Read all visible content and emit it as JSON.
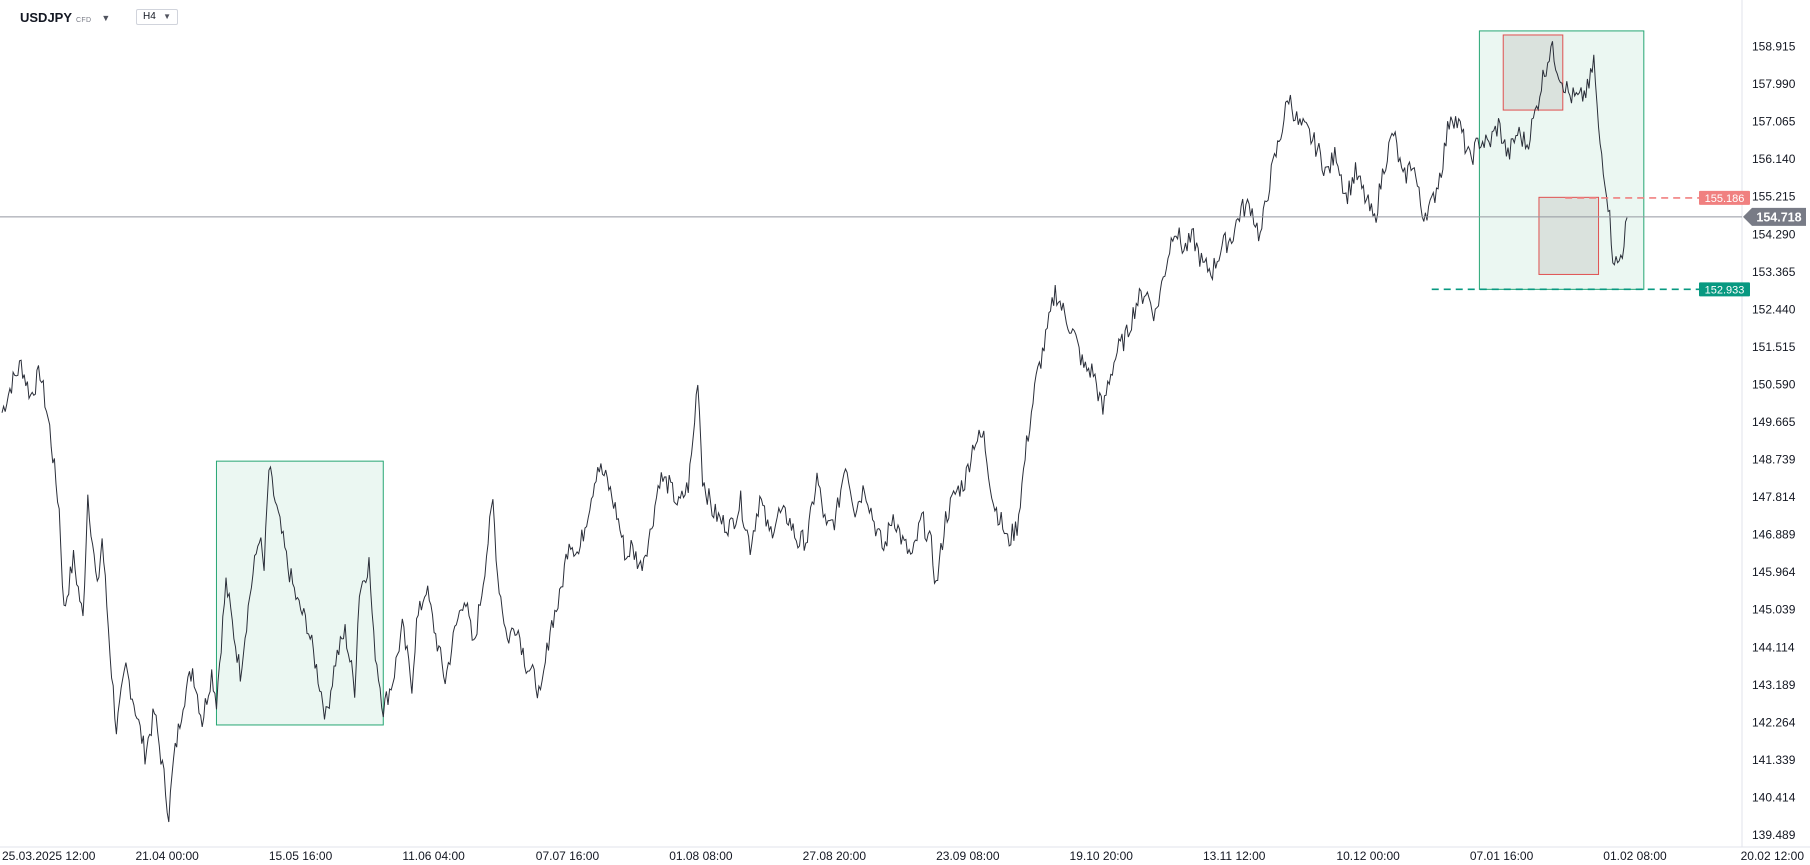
{
  "header": {
    "symbol": "USDJPY",
    "symbol_tag": "CFD",
    "symbol_caret_icon": "chevron-down-icon",
    "timeframe": "H4",
    "timeframe_caret_icon": "chevron-down-icon"
  },
  "chart_data": {
    "type": "line",
    "series": [
      {
        "instrument": "USDJPY",
        "color": "#2a2e39",
        "points": [
          [
            0,
            149.9
          ],
          [
            2,
            150.6
          ],
          [
            4,
            151.1
          ],
          [
            6,
            150.3
          ],
          [
            8,
            150.9
          ],
          [
            10,
            149.5
          ],
          [
            12,
            147.5
          ],
          [
            13,
            145.0
          ],
          [
            15,
            146.3
          ],
          [
            17,
            144.8
          ],
          [
            18,
            147.9
          ],
          [
            20,
            145.5
          ],
          [
            21,
            146.8
          ],
          [
            23,
            143.5
          ],
          [
            24,
            142.1
          ],
          [
            26,
            143.6
          ],
          [
            28,
            142.6
          ],
          [
            30,
            141.5
          ],
          [
            32,
            142.5
          ],
          [
            34,
            140.9
          ],
          [
            35,
            140.0
          ],
          [
            36,
            141.3
          ],
          [
            38,
            142.8
          ],
          [
            40,
            143.6
          ],
          [
            42,
            142.3
          ],
          [
            44,
            143.5
          ],
          [
            45,
            142.8
          ],
          [
            47,
            145.7
          ],
          [
            49,
            144.2
          ],
          [
            50,
            143.5
          ],
          [
            52,
            145.4
          ],
          [
            54,
            146.9
          ],
          [
            55,
            146.0
          ],
          [
            56,
            148.5
          ],
          [
            58,
            147.3
          ],
          [
            60,
            146.1
          ],
          [
            62,
            145.2
          ],
          [
            64,
            144.7
          ],
          [
            66,
            143.6
          ],
          [
            68,
            142.4
          ],
          [
            70,
            143.8
          ],
          [
            72,
            144.5
          ],
          [
            74,
            143.1
          ],
          [
            75,
            145.5
          ],
          [
            77,
            146.2
          ],
          [
            78,
            144.3
          ],
          [
            80,
            142.6
          ],
          [
            82,
            143.3
          ],
          [
            84,
            144.6
          ],
          [
            86,
            143.2
          ],
          [
            87,
            144.7
          ],
          [
            89,
            145.6
          ],
          [
            91,
            144.4
          ],
          [
            93,
            143.3
          ],
          [
            95,
            144.5
          ],
          [
            97,
            145.4
          ],
          [
            99,
            144.1
          ],
          [
            101,
            145.8
          ],
          [
            103,
            147.7
          ],
          [
            104,
            145.9
          ],
          [
            106,
            144.3
          ],
          [
            108,
            144.7
          ],
          [
            110,
            143.7
          ],
          [
            112,
            143.3
          ],
          [
            113,
            142.8
          ],
          [
            115,
            144.6
          ],
          [
            117,
            145.3
          ],
          [
            119,
            146.8
          ],
          [
            121,
            146.4
          ],
          [
            123,
            147.5
          ],
          [
            125,
            148.6
          ],
          [
            127,
            148.2
          ],
          [
            129,
            147.4
          ],
          [
            131,
            146.3
          ],
          [
            132,
            146.6
          ],
          [
            134,
            146.1
          ],
          [
            136,
            146.9
          ],
          [
            138,
            148.3
          ],
          [
            140,
            148.1
          ],
          [
            142,
            147.6
          ],
          [
            144,
            148.1
          ],
          [
            145,
            149.2
          ],
          [
            146,
            150.8
          ],
          [
            147,
            148.3
          ],
          [
            149,
            147.5
          ],
          [
            151,
            147.2
          ],
          [
            153,
            147.1
          ],
          [
            155,
            147.7
          ],
          [
            157,
            146.6
          ],
          [
            159,
            147.8
          ],
          [
            161,
            146.9
          ],
          [
            163,
            147.4
          ],
          [
            165,
            147.3
          ],
          [
            167,
            146.7
          ],
          [
            169,
            146.8
          ],
          [
            171,
            148.3
          ],
          [
            173,
            147.0
          ],
          [
            175,
            147.3
          ],
          [
            177,
            148.7
          ],
          [
            179,
            147.5
          ],
          [
            181,
            148.1
          ],
          [
            183,
            147.2
          ],
          [
            185,
            146.5
          ],
          [
            187,
            147.4
          ],
          [
            189,
            146.7
          ],
          [
            191,
            146.3
          ],
          [
            193,
            147.3
          ],
          [
            195,
            146.6
          ],
          [
            196,
            145.6
          ],
          [
            198,
            147.3
          ],
          [
            200,
            147.9
          ],
          [
            202,
            148.2
          ],
          [
            204,
            149.2
          ],
          [
            206,
            149.3
          ],
          [
            208,
            147.7
          ],
          [
            210,
            147.1
          ],
          [
            211,
            146.7
          ],
          [
            212,
            146.9
          ],
          [
            213,
            147.1
          ],
          [
            215,
            149.1
          ],
          [
            217,
            150.7
          ],
          [
            219,
            151.7
          ],
          [
            221,
            152.9
          ],
          [
            223,
            152.3
          ],
          [
            225,
            151.8
          ],
          [
            227,
            151.0
          ],
          [
            229,
            150.9
          ],
          [
            231,
            149.9
          ],
          [
            232,
            150.6
          ],
          [
            234,
            151.4
          ],
          [
            236,
            151.8
          ],
          [
            238,
            152.6
          ],
          [
            240,
            152.9
          ],
          [
            242,
            152.3
          ],
          [
            244,
            153.4
          ],
          [
            246,
            154.5
          ],
          [
            248,
            153.9
          ],
          [
            250,
            154.2
          ],
          [
            252,
            153.5
          ],
          [
            254,
            153.4
          ],
          [
            256,
            154.0
          ],
          [
            258,
            154.2
          ],
          [
            260,
            154.9
          ],
          [
            262,
            155.0
          ],
          [
            264,
            154.2
          ],
          [
            266,
            155.6
          ],
          [
            268,
            156.6
          ],
          [
            270,
            157.7
          ],
          [
            272,
            157.0
          ],
          [
            274,
            156.8
          ],
          [
            276,
            156.4
          ],
          [
            278,
            155.8
          ],
          [
            280,
            156.3
          ],
          [
            282,
            155.2
          ],
          [
            284,
            155.8
          ],
          [
            286,
            155.2
          ],
          [
            288,
            154.6
          ],
          [
            290,
            156.0
          ],
          [
            292,
            156.8
          ],
          [
            294,
            155.6
          ],
          [
            296,
            156.1
          ],
          [
            298,
            154.8
          ],
          [
            300,
            155.0
          ],
          [
            302,
            155.9
          ],
          [
            304,
            157.3
          ],
          [
            306,
            156.9
          ],
          [
            308,
            156.1
          ],
          [
            310,
            156.6
          ],
          [
            312,
            156.5
          ],
          [
            314,
            157.0
          ],
          [
            316,
            156.2
          ],
          [
            318,
            156.8
          ],
          [
            320,
            156.5
          ],
          [
            322,
            157.4
          ],
          [
            323,
            158.0
          ],
          [
            325,
            158.9
          ],
          [
            327,
            158.2
          ],
          [
            329,
            157.7
          ],
          [
            331,
            157.6
          ],
          [
            333,
            157.9
          ],
          [
            334,
            158.6
          ],
          [
            335,
            156.8
          ],
          [
            336,
            156.0
          ],
          [
            337,
            155.1
          ],
          [
            338,
            153.8
          ],
          [
            339,
            153.5
          ],
          [
            340,
            153.9
          ],
          [
            341,
            154.7
          ]
        ]
      }
    ],
    "xlim": [
      0,
      360
    ],
    "ylim": [
      139.489,
      159.84
    ],
    "x_tick_labels": [
      "25.03.2025  12:00",
      "21.04  00:00",
      "15.05  16:00",
      "11.06  04:00",
      "07.07  16:00",
      "01.08  08:00",
      "27.08  20:00",
      "23.09  08:00",
      "19.10  20:00",
      "13.11  12:00",
      "10.12  00:00",
      "07.01  16:00",
      "01.02  08:00",
      "20.02  12:00"
    ],
    "x_tick_positions": [
      0,
      28,
      56,
      84,
      112,
      140,
      168,
      196,
      224,
      252,
      280,
      308,
      336,
      364
    ],
    "y_tick_labels": [
      "158.915",
      "157.990",
      "157.065",
      "156.140",
      "155.215",
      "154.290",
      "153.365",
      "152.440",
      "151.515",
      "150.590",
      "149.665",
      "148.739",
      "147.814",
      "146.889",
      "145.964",
      "145.039",
      "144.114",
      "143.189",
      "142.264",
      "141.339",
      "140.414",
      "139.489"
    ],
    "grid": false,
    "current_price": {
      "value": 154.718,
      "label": "154.718",
      "color": "#787b86"
    },
    "levels": [
      {
        "value": 155.186,
        "label": "155.186",
        "color": "#f08080",
        "x_start": 328,
        "style": "dashed"
      },
      {
        "value": 152.933,
        "label": "152.933",
        "color": "#089981",
        "x_start": 300,
        "style": "dashed"
      }
    ],
    "zones": [
      {
        "x0": 45,
        "x1": 80,
        "y0": 142.2,
        "y1": 148.7,
        "fill": "rgba(38,166,116,0.09)",
        "stroke": "#26a674"
      },
      {
        "x0": 310,
        "x1": 344.5,
        "y0": 152.933,
        "y1": 159.3,
        "fill": "rgba(38,166,116,0.09)",
        "stroke": "#26a674"
      },
      {
        "x0": 315,
        "x1": 327.5,
        "y0": 157.35,
        "y1": 159.2,
        "fill": "rgba(120,110,100,0.15)",
        "stroke": "#e05050"
      },
      {
        "x0": 322.5,
        "x1": 335,
        "y0": 153.3,
        "y1": 155.2,
        "fill": "rgba(120,110,100,0.15)",
        "stroke": "#e05050"
      }
    ]
  }
}
